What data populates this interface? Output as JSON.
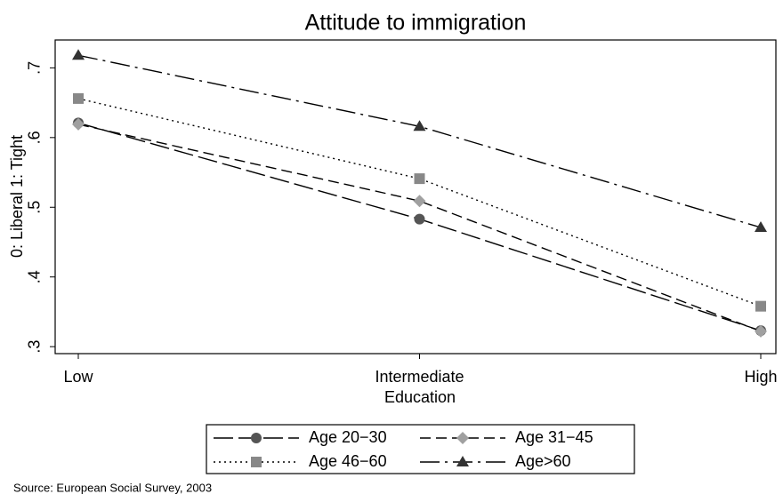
{
  "chart_data": {
    "type": "line",
    "title": "Attitude to immigration",
    "x_label": "Education",
    "y_label": "0: Liberal 1: Tight",
    "source": "Source: European Social Survey, 2003",
    "categories": [
      "Low",
      "Intermediate",
      "High"
    ],
    "ylim": [
      0.29,
      0.74
    ],
    "yticks": [
      {
        "value": 0.3,
        "label": ".3"
      },
      {
        "value": 0.4,
        "label": ".4"
      },
      {
        "value": 0.5,
        "label": ".5"
      },
      {
        "value": 0.6,
        "label": ".6"
      },
      {
        "value": 0.7,
        "label": ".7"
      }
    ],
    "series": [
      {
        "name": "Age 20−30",
        "color": "#555555",
        "marker": "circle",
        "dash": "long",
        "values": [
          0.621,
          0.483,
          0.323
        ]
      },
      {
        "name": "Age 31−45",
        "color": "#a0a0a0",
        "marker": "diamond",
        "dash": "medium",
        "values": [
          0.619,
          0.509,
          0.322
        ]
      },
      {
        "name": "Age 46−60",
        "color": "#888888",
        "marker": "square",
        "dash": "dot",
        "values": [
          0.656,
          0.541,
          0.358
        ]
      },
      {
        "name": "Age>60",
        "color": "#333333",
        "marker": "triangle",
        "dash": "dashdot",
        "values": [
          0.718,
          0.616,
          0.471
        ]
      }
    ]
  }
}
